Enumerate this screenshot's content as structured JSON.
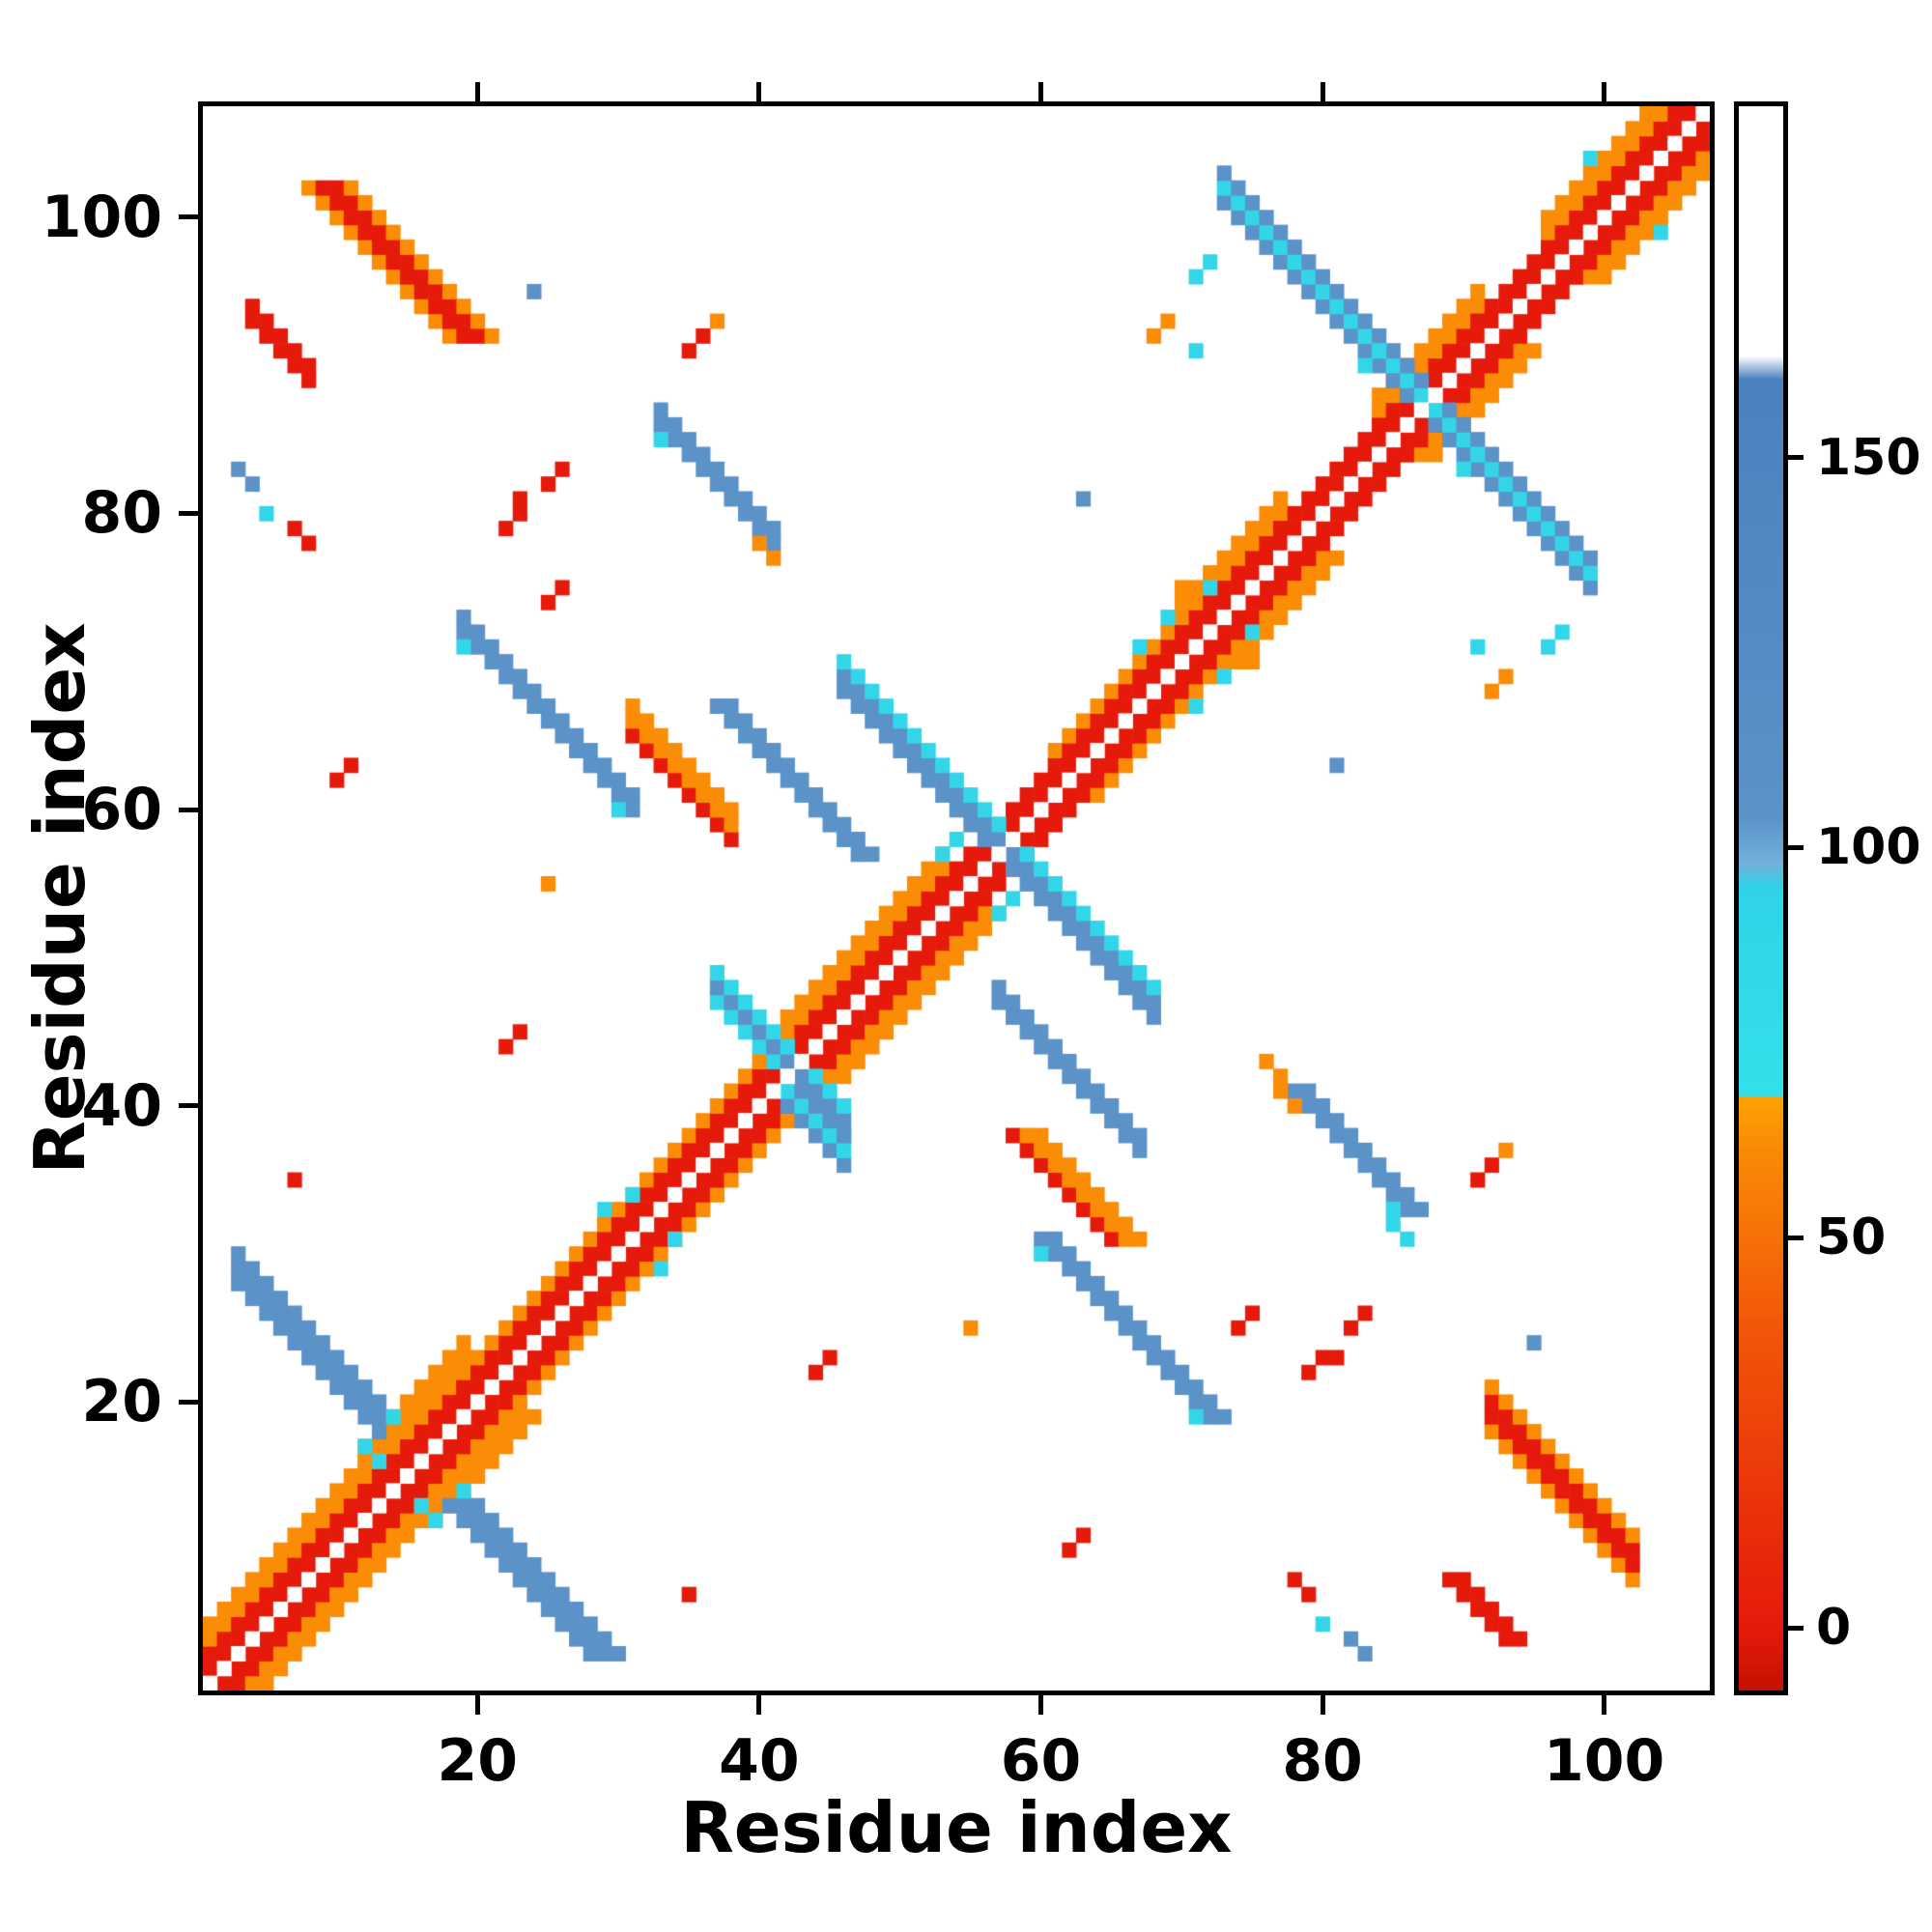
{
  "chart_data": {
    "type": "heatmap",
    "title": "",
    "xlabel": "Residue index",
    "ylabel": "Residue index",
    "n_residues": 107,
    "x_range": [
      0.5,
      107.5
    ],
    "y_range": [
      0.5,
      107.5
    ],
    "x_ticks": [
      20,
      40,
      60,
      80,
      100
    ],
    "y_ticks": [
      20,
      40,
      60,
      80,
      100
    ],
    "grid": false,
    "legend": "none",
    "palette": {
      "red": "#e51a0a",
      "redorange": "#f25509",
      "orange": "#fa8c06",
      "cyan": "#33d6e8",
      "steel": "#5b92c8",
      "blue": "#4b81bf",
      "white": "#ffffff"
    },
    "colorbar": {
      "range": [
        -8,
        195
      ],
      "ticks": [
        0,
        50,
        100,
        150
      ],
      "stops": [
        {
          "v": -8,
          "c": "#c41100"
        },
        {
          "v": 0,
          "c": "#e51a0a"
        },
        {
          "v": 38,
          "c": "#f25509"
        },
        {
          "v": 62,
          "c": "#fa8c06"
        },
        {
          "v": 68,
          "c": "#fda303"
        },
        {
          "v": 68.2,
          "c": "#33e0ea"
        },
        {
          "v": 95,
          "c": "#30d2e8"
        },
        {
          "v": 98,
          "c": "#72b0da"
        },
        {
          "v": 104,
          "c": "#5b92c8"
        },
        {
          "v": 160,
          "c": "#4b81bf"
        },
        {
          "v": 163,
          "c": "#ffffff"
        },
        {
          "v": 195,
          "c": "#ffffff"
        }
      ]
    },
    "diagonal_segments": [
      {
        "from": 1,
        "to": 12,
        "hw": 4
      },
      {
        "from": 12,
        "to": 19,
        "hw": 5
      },
      {
        "from": 19,
        "to": 29,
        "hw": 3
      },
      {
        "from": 29,
        "to": 42,
        "hw": 3
      },
      {
        "from": 42,
        "to": 53,
        "hw": 4
      },
      {
        "from": 53,
        "to": 61,
        "hw": 2
      },
      {
        "from": 61,
        "to": 70,
        "hw": 3
      },
      {
        "from": 70,
        "to": 77,
        "hw": 4
      },
      {
        "from": 77,
        "to": 84,
        "hw": 2
      },
      {
        "from": 84,
        "to": 91,
        "hw": 4
      },
      {
        "from": 91,
        "to": 96,
        "hw": 2
      },
      {
        "from": 96,
        "to": 107,
        "hw": 4
      }
    ],
    "anti_segments": [
      {
        "x": 3,
        "y": 28,
        "len": 11,
        "w": 3,
        "color": "steel",
        "mirror": true
      },
      {
        "x": 19,
        "y": 72,
        "len": 13,
        "w": 2,
        "color": "steel",
        "mirror": true
      },
      {
        "x": 33,
        "y": 86,
        "len": 9,
        "w": 2,
        "color": "steel",
        "mirror": true
      },
      {
        "x": 37,
        "y": 47,
        "len": 10,
        "w": 3,
        "color": [
          "cyan",
          "steel"
        ],
        "mirror": false
      },
      {
        "x": 42,
        "y": 40,
        "len": 5,
        "w": 3,
        "color": [
          "steel",
          "cyan"
        ],
        "mirror": false
      },
      {
        "x": 46,
        "y": 68,
        "len": 23,
        "w": 3,
        "color": [
          "steel",
          "steel",
          "cyan"
        ],
        "mirror": false
      },
      {
        "x": 57,
        "y": 47,
        "len": 11,
        "w": 2,
        "color": "steel",
        "mirror": true
      },
      {
        "x": 73,
        "y": 101,
        "len": 27,
        "w": 3,
        "color": [
          "steel",
          "cyan",
          "steel"
        ],
        "mirror": false
      },
      {
        "x": 92,
        "y": 18,
        "len": 11,
        "w": 4,
        "color": [
          "orange",
          "red",
          "red",
          "orange"
        ],
        "mirror": true
      },
      {
        "x": 4,
        "y": 93,
        "len": 5,
        "w": 2,
        "color": "red",
        "mirror": true
      },
      {
        "x": 31,
        "y": 65,
        "len": 8,
        "w": 3,
        "color": [
          "red",
          "orange",
          "orange"
        ],
        "mirror": true
      }
    ],
    "cells": [
      {
        "x": 12,
        "y": 17,
        "c": "cyan",
        "m": true
      },
      {
        "x": 13,
        "y": 16,
        "c": "cyan",
        "m": true
      },
      {
        "x": 14,
        "y": 19,
        "c": "cyan",
        "m": true
      },
      {
        "x": 19,
        "y": 71,
        "c": "cyan",
        "m": true
      },
      {
        "x": 30,
        "y": 60,
        "c": "cyan",
        "m": true
      },
      {
        "x": 33,
        "y": 85,
        "c": "cyan",
        "m": true
      },
      {
        "x": 40,
        "y": 78,
        "c": "orange",
        "m": true
      },
      {
        "x": 41,
        "y": 77,
        "c": "orange",
        "m": true
      },
      {
        "x": 29,
        "y": 33,
        "c": "cyan",
        "m": true
      },
      {
        "x": 31,
        "y": 34,
        "c": "cyan",
        "m": true
      },
      {
        "x": 53,
        "y": 57,
        "c": "cyan",
        "m": true
      },
      {
        "x": 54,
        "y": 58,
        "c": "cyan",
        "m": true
      },
      {
        "x": 67,
        "y": 71,
        "c": "cyan",
        "m": true
      },
      {
        "x": 69,
        "y": 73,
        "c": "cyan",
        "m": true
      },
      {
        "x": 72,
        "y": 75,
        "c": "cyan",
        "m": true
      },
      {
        "x": 70,
        "y": 75,
        "c": "orange",
        "m": true
      },
      {
        "x": 83,
        "y": 90,
        "c": "cyan",
        "m": true
      },
      {
        "x": 84,
        "y": 91,
        "c": "cyan",
        "m": true
      },
      {
        "x": 99,
        "y": 104,
        "c": "cyan",
        "m": true
      },
      {
        "x": 92,
        "y": 68,
        "c": "orange",
        "m": true
      },
      {
        "x": 93,
        "y": 69,
        "c": "orange",
        "m": true
      },
      {
        "x": 96,
        "y": 71,
        "c": "cyan",
        "m": true
      },
      {
        "x": 97,
        "y": 72,
        "c": "cyan",
        "m": true
      },
      {
        "x": 24,
        "y": 95,
        "c": "steel",
        "m": true
      },
      {
        "x": 63,
        "y": 81,
        "c": "steel",
        "m": true
      },
      {
        "x": 91,
        "y": 71,
        "c": "cyan",
        "m": true
      },
      {
        "x": 35,
        "y": 7,
        "c": "red",
        "m": true
      },
      {
        "x": 10,
        "y": 62,
        "c": "red",
        "m": true
      },
      {
        "x": 11,
        "y": 63,
        "c": "red",
        "m": true
      },
      {
        "x": 22,
        "y": 79,
        "c": "red",
        "m": true
      },
      {
        "x": 23,
        "y": 80,
        "c": "red",
        "m": true
      },
      {
        "x": 23,
        "y": 81,
        "c": "red",
        "m": true
      },
      {
        "x": 25,
        "y": 82,
        "c": "red",
        "m": true
      },
      {
        "x": 26,
        "y": 83,
        "c": "red",
        "m": true
      },
      {
        "x": 35,
        "y": 91,
        "c": "red",
        "m": true
      },
      {
        "x": 36,
        "y": 92,
        "c": "red",
        "m": true
      },
      {
        "x": 37,
        "y": 93,
        "c": "orange",
        "m": true
      },
      {
        "x": 44,
        "y": 22,
        "c": "red",
        "m": true
      },
      {
        "x": 45,
        "y": 23,
        "c": "red",
        "m": true
      },
      {
        "x": 55,
        "y": 25,
        "c": "orange",
        "m": true
      },
      {
        "x": 74,
        "y": 25,
        "c": "red",
        "m": true
      },
      {
        "x": 75,
        "y": 26,
        "c": "red",
        "m": true
      },
      {
        "x": 3,
        "y": 83,
        "c": "steel",
        "m": true
      },
      {
        "x": 4,
        "y": 82,
        "c": "steel",
        "m": true
      },
      {
        "x": 5,
        "y": 80,
        "c": "cyan",
        "m": true
      },
      {
        "x": 7,
        "y": 79,
        "c": "red",
        "m": true
      },
      {
        "x": 8,
        "y": 78,
        "c": "red",
        "m": true
      },
      {
        "x": 76,
        "y": 43,
        "c": "orange",
        "m": false
      },
      {
        "x": 77,
        "y": 42,
        "c": "orange",
        "m": false
      },
      {
        "x": 85,
        "y": 32,
        "c": "cyan",
        "m": false
      },
      {
        "x": 86,
        "y": 31,
        "c": "cyan",
        "m": false
      }
    ]
  }
}
